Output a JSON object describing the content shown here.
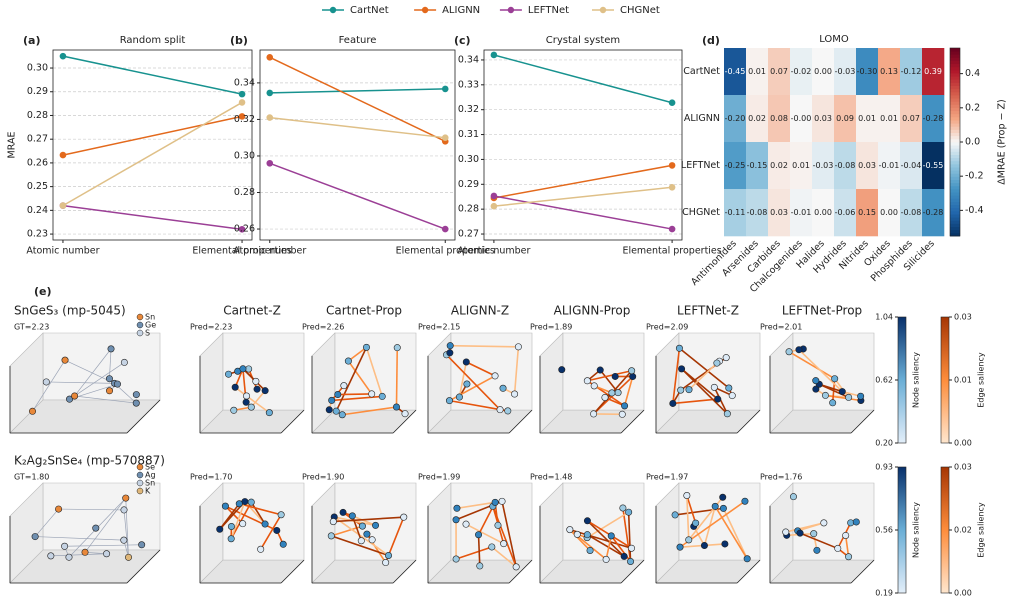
{
  "chart_data": [
    {
      "type": "line",
      "panel": "(a)",
      "title": "Random split",
      "ylabel": "MRAE",
      "categories": [
        "Atomic number",
        "Elemental properties"
      ],
      "series": [
        {
          "name": "CartNet",
          "color": "#17928f",
          "values": [
            0.305,
            0.289
          ]
        },
        {
          "name": "ALIGNN",
          "color": "#e3691c",
          "values": [
            0.2633,
            0.2796
          ]
        },
        {
          "name": "LEFTNet",
          "color": "#9b3f96",
          "values": [
            0.242,
            0.232
          ]
        },
        {
          "name": "CHGNet",
          "color": "#dfc088",
          "values": [
            0.242,
            0.2855
          ]
        }
      ],
      "ylim": [
        0.2275,
        0.3076
      ],
      "yticks": [
        0.23,
        0.24,
        0.25,
        0.26,
        0.27,
        0.28,
        0.29,
        {
          "value": 0.3,
          "label": "0.30"
        }
      ],
      "grid": true
    },
    {
      "type": "line",
      "panel": "(b)",
      "title": "Feature",
      "categories": [
        "Atomic number",
        "Elemental properties"
      ],
      "series": [
        {
          "color": "#17928f",
          "values": [
            0.3345,
            0.3367
          ]
        },
        {
          "color": "#e3691c",
          "values": [
            0.354,
            0.308
          ]
        },
        {
          "color": "#9b3f96",
          "values": [
            0.296,
            0.26
          ]
        },
        {
          "color": "#dfc088",
          "values": [
            0.321,
            0.31
          ]
        }
      ],
      "ylim": [
        0.254,
        0.358
      ],
      "yticks": [
        0.26,
        0.28,
        {
          "value": 0.3,
          "label": "0.30"
        },
        0.32,
        0.34
      ],
      "grid": true
    },
    {
      "type": "line",
      "panel": "(c)",
      "title": "Crystal system",
      "categories": [
        "Atomic number",
        "Elemental properties"
      ],
      "series": [
        {
          "color": "#17928f",
          "values": [
            0.342,
            0.3228
          ]
        },
        {
          "color": "#e3691c",
          "values": [
            0.2845,
            0.2976
          ]
        },
        {
          "color": "#9b3f96",
          "values": [
            0.2853,
            0.272
          ]
        },
        {
          "color": "#dfc088",
          "values": [
            0.2812,
            0.2888
          ]
        }
      ],
      "ylim": [
        0.2676,
        0.344
      ],
      "yticks": [
        0.27,
        0.28,
        0.29,
        {
          "value": 0.3,
          "label": "0.30"
        },
        0.31,
        0.32,
        0.33,
        0.34
      ],
      "grid": true
    },
    {
      "type": "heatmap",
      "panel": "(d)",
      "title": "LOMO",
      "rows": [
        "CartNet",
        "ALIGNN",
        "LEFTNet",
        "CHGNet"
      ],
      "columns": [
        "Antimonides",
        "Arsenides",
        "Carbides",
        "Chalcogenides",
        "Halides",
        "Hydrides",
        "Nitrides",
        "Oxides",
        "Phosphides",
        "Silicides"
      ],
      "values": [
        [
          -0.45,
          0.01,
          0.07,
          -0.02,
          0,
          -0.03,
          -0.3,
          0.13,
          -0.12,
          0.39
        ],
        [
          -0.2,
          0.02,
          0.08,
          0,
          0.03,
          0.09,
          0.01,
          0.01,
          0.07,
          -0.28
        ],
        [
          -0.25,
          -0.15,
          0.02,
          0.01,
          -0.03,
          -0.08,
          0.03,
          -0.01,
          -0.04,
          -0.55
        ],
        [
          -0.11,
          -0.08,
          0.03,
          -0.01,
          0,
          -0.06,
          0.15,
          0,
          -0.08,
          -0.28
        ]
      ],
      "value_labels": [
        [
          "-0.45",
          "0.01",
          "0.07",
          "-0.02",
          "0.00",
          "-0.03",
          "-0.30",
          "0.13",
          "-0.12",
          "0.39"
        ],
        [
          "-0.20",
          "0.02",
          "0.08",
          "-0.00",
          "0.03",
          "0.09",
          "0.01",
          "0.01",
          "0.07",
          "-0.28"
        ],
        [
          "-0.25",
          "-0.15",
          "0.02",
          "0.01",
          "-0.03",
          "-0.08",
          "0.03",
          "-0.01",
          "-0.04",
          "-0.55"
        ],
        [
          "-0.11",
          "-0.08",
          "0.03",
          "-0.01",
          "0.00",
          "-0.06",
          "0.15",
          "0.00",
          "-0.08",
          "-0.28"
        ]
      ],
      "colorbar_label": "ΔMRAE (Prop − Z)",
      "clim": [
        -0.55,
        0.55
      ],
      "cticks": [
        -0.4,
        -0.2,
        {
          "value": 0,
          "label": "0.0"
        },
        0.2,
        0.4
      ],
      "colormap": "RdBu_r"
    }
  ],
  "panel_e": {
    "label": "(e)",
    "methods": [
      "Cartnet-Z",
      "Cartnet-Prop",
      "ALIGNN-Z",
      "ALIGNN-Prop",
      "LEFTNet-Z",
      "LEFTNet-Prop"
    ],
    "node_colorbar_label": "Node saliency",
    "edge_colorbar_label": "Edge saliency",
    "rows": [
      {
        "structure": "SnGeS₃ (mp-5045)",
        "gt": "GT=2.23",
        "elements": [
          "Sn",
          "Ge",
          "S"
        ],
        "element_colors": [
          "#e8883a",
          "#6f8fb0",
          "#c6d3e3"
        ],
        "preds": [
          "Pred=2.23",
          "Pred=2.26",
          "Pred=2.15",
          "Pred=1.89",
          "Pred=2.09",
          "Pred=2.01"
        ],
        "node_ticks": [
          "1.04",
          "0.62",
          "0.20"
        ],
        "edge_ticks": [
          "0.03",
          "0.01",
          "0.00"
        ]
      },
      {
        "structure": "K₂Ag₂SnSe₄ (mp-570887)",
        "gt": "GT=1.80",
        "elements": [
          "Se",
          "Ag",
          "Sn",
          "K"
        ],
        "element_colors": [
          "#e8883a",
          "#6f8fb0",
          "#c6d3e3",
          "#dfb77a"
        ],
        "preds": [
          "Pred=1.70",
          "Pred=1.90",
          "Pred=1.99",
          "Pred=1.48",
          "Pred=1.97",
          "Pred=1.76"
        ],
        "node_ticks": [
          "0.93",
          "0.56",
          "0.19"
        ],
        "edge_ticks": [
          "0.03",
          "0.02",
          "0.00"
        ]
      }
    ]
  }
}
